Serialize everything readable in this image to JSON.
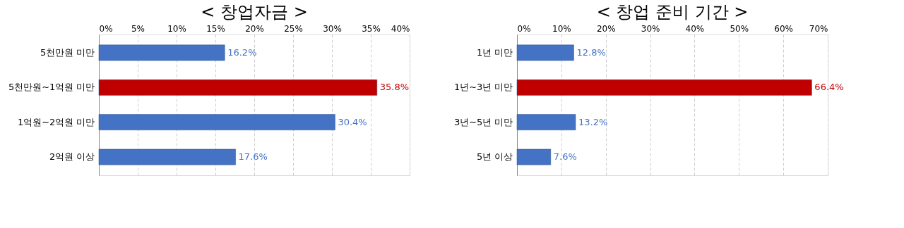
{
  "chart_data": [
    {
      "type": "bar",
      "orientation": "horizontal",
      "title": "< 창업자금 >",
      "categories": [
        "5천만원 미만",
        "5천만원~1억원 미만",
        "1억원~2억원 미만",
        "2억원 이상"
      ],
      "values": [
        16.2,
        35.8,
        30.4,
        17.6
      ],
      "colors": [
        "#4472c4",
        "#c00000",
        "#4472c4",
        "#4472c4"
      ],
      "value_labels": [
        "16.2%",
        "35.8%",
        "30.4%",
        "17.6%"
      ],
      "xlim": [
        0,
        40
      ],
      "xticks": [
        {
          "value": 0,
          "label": "0%"
        },
        {
          "value": 5,
          "label": "5%"
        },
        {
          "value": 10,
          "label": "10%"
        },
        {
          "value": 15,
          "label": "15%"
        },
        {
          "value": 20,
          "label": "20%"
        },
        {
          "value": 25,
          "label": "25%"
        },
        {
          "value": 30,
          "label": "30%"
        },
        {
          "value": 35,
          "label": "35%"
        },
        {
          "value": 40,
          "label": "40%"
        }
      ],
      "grid": "x"
    },
    {
      "type": "bar",
      "orientation": "horizontal",
      "title": "< 창업 준비 기간 >",
      "categories": [
        "1년 미만",
        "1년~3년 미만",
        "3년~5년 미만",
        "5년 이상"
      ],
      "values": [
        12.8,
        66.4,
        13.2,
        7.6
      ],
      "colors": [
        "#4472c4",
        "#c00000",
        "#4472c4",
        "#4472c4"
      ],
      "value_labels": [
        "12.8%",
        "66.4%",
        "13.2%",
        "7.6%"
      ],
      "xlim": [
        0,
        70
      ],
      "xticks": [
        {
          "value": 0,
          "label": "0%"
        },
        {
          "value": 10,
          "label": "10%"
        },
        {
          "value": 20,
          "label": "20%"
        },
        {
          "value": 30,
          "label": "30%"
        },
        {
          "value": 40,
          "label": "40%"
        },
        {
          "value": 50,
          "label": "50%"
        },
        {
          "value": 60,
          "label": "60%"
        },
        {
          "value": 70,
          "label": "70%"
        }
      ],
      "grid": "x"
    }
  ]
}
